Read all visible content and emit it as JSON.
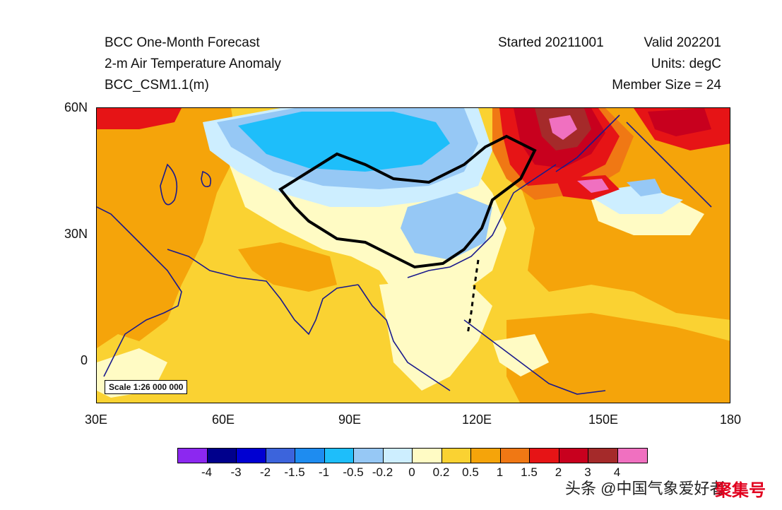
{
  "header": {
    "title": "BCC One-Month Forecast",
    "variable": "2-m Air Temperature Anomaly",
    "model": "BCC_CSM1.1(m)",
    "started": "Started 20211001",
    "valid": "Valid 202201",
    "units": "Units: degC",
    "members": "Member Size = 24"
  },
  "map": {
    "scale": "Scale 1:26 000 000",
    "lat_labels": [
      "60N",
      "30N",
      "0"
    ],
    "lon_labels": [
      "30E",
      "60E",
      "90E",
      "120E",
      "150E",
      "180"
    ],
    "colors": {
      "ocean_base": "#fad232",
      "light_yellow": "#fffbc4",
      "orange": "#f5a40a",
      "dark_orange": "#f07814",
      "red": "#e61416",
      "dark_red": "#c8001e",
      "brown_red": "#a52a2a",
      "pink": "#f070c0",
      "pale_blue": "#cdeeff",
      "light_blue": "#96c8f5",
      "sky_blue": "#1ebefa",
      "coast": "#1a1a8c",
      "border": "#000000"
    }
  },
  "colorbar": {
    "colors": [
      "#8c28f0",
      "#00008c",
      "#0000d2",
      "#3c64dc",
      "#1e8cf0",
      "#1ebefa",
      "#96c8f5",
      "#cdeeff",
      "#fffbc4",
      "#fad232",
      "#f5a40a",
      "#f07814",
      "#e61416",
      "#c8001e",
      "#a52a2a",
      "#f070c0"
    ],
    "labels": [
      "-4",
      "-3",
      "-2",
      "-1.5",
      "-1",
      "-0.5",
      "-0.2",
      "0",
      "0.2",
      "0.5",
      "1",
      "1.5",
      "2",
      "3",
      "4"
    ]
  },
  "watermark": {
    "text": "头条 @中国气象爱好者",
    "logo": "聚集号"
  }
}
